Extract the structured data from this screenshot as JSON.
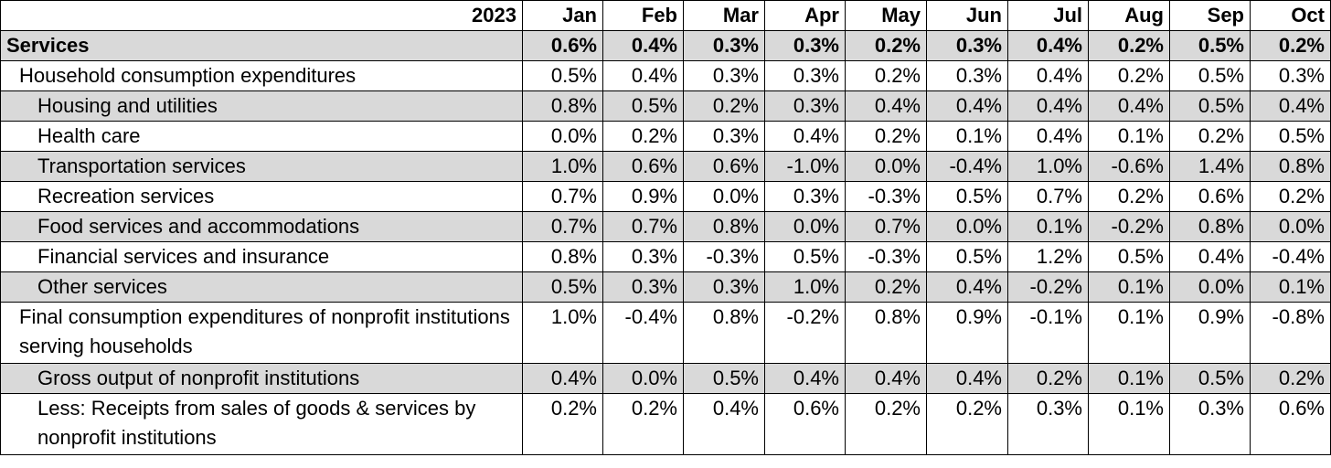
{
  "year_label": "2023",
  "months": [
    "Jan",
    "Feb",
    "Mar",
    "Apr",
    "May",
    "Jun",
    "Jul",
    "Aug",
    "Sep",
    "Oct"
  ],
  "rows": [
    {
      "label": "Services",
      "level": 0,
      "bold": true,
      "shade": true,
      "tall": false,
      "values": [
        "0.6%",
        "0.4%",
        "0.3%",
        "0.3%",
        "0.2%",
        "0.3%",
        "0.4%",
        "0.2%",
        "0.5%",
        "0.2%"
      ]
    },
    {
      "label": "Household consumption expenditures",
      "level": 1,
      "bold": false,
      "shade": false,
      "tall": false,
      "values": [
        "0.5%",
        "0.4%",
        "0.3%",
        "0.3%",
        "0.2%",
        "0.3%",
        "0.4%",
        "0.2%",
        "0.5%",
        "0.3%"
      ]
    },
    {
      "label": "Housing and utilities",
      "level": 2,
      "bold": false,
      "shade": true,
      "tall": false,
      "values": [
        "0.8%",
        "0.5%",
        "0.2%",
        "0.3%",
        "0.4%",
        "0.4%",
        "0.4%",
        "0.4%",
        "0.5%",
        "0.4%"
      ]
    },
    {
      "label": "Health care",
      "level": 2,
      "bold": false,
      "shade": false,
      "tall": false,
      "values": [
        "0.0%",
        "0.2%",
        "0.3%",
        "0.4%",
        "0.2%",
        "0.1%",
        "0.4%",
        "0.1%",
        "0.2%",
        "0.5%"
      ]
    },
    {
      "label": "Transportation services",
      "level": 2,
      "bold": false,
      "shade": true,
      "tall": false,
      "values": [
        "1.0%",
        "0.6%",
        "0.6%",
        "-1.0%",
        "0.0%",
        "-0.4%",
        "1.0%",
        "-0.6%",
        "1.4%",
        "0.8%"
      ]
    },
    {
      "label": "Recreation services",
      "level": 2,
      "bold": false,
      "shade": false,
      "tall": false,
      "values": [
        "0.7%",
        "0.9%",
        "0.0%",
        "0.3%",
        "-0.3%",
        "0.5%",
        "0.7%",
        "0.2%",
        "0.6%",
        "0.2%"
      ]
    },
    {
      "label": "Food services and accommodations",
      "level": 2,
      "bold": false,
      "shade": true,
      "tall": false,
      "values": [
        "0.7%",
        "0.7%",
        "0.8%",
        "0.0%",
        "0.7%",
        "0.0%",
        "0.1%",
        "-0.2%",
        "0.8%",
        "0.0%"
      ]
    },
    {
      "label": "Financial services and insurance",
      "level": 2,
      "bold": false,
      "shade": false,
      "tall": false,
      "values": [
        "0.8%",
        "0.3%",
        "-0.3%",
        "0.5%",
        "-0.3%",
        "0.5%",
        "1.2%",
        "0.5%",
        "0.4%",
        "-0.4%"
      ]
    },
    {
      "label": "Other services",
      "level": 2,
      "bold": false,
      "shade": true,
      "tall": false,
      "values": [
        "0.5%",
        "0.3%",
        "0.3%",
        "1.0%",
        "0.2%",
        "0.4%",
        "-0.2%",
        "0.1%",
        "0.0%",
        "0.1%"
      ]
    },
    {
      "label": "Final consumption expenditures of nonprofit institutions serving households",
      "level": 1,
      "bold": false,
      "shade": false,
      "tall": true,
      "values": [
        "1.0%",
        "-0.4%",
        "0.8%",
        "-0.2%",
        "0.8%",
        "0.9%",
        "-0.1%",
        "0.1%",
        "0.9%",
        "-0.8%"
      ]
    },
    {
      "label": "Gross output of nonprofit institutions",
      "level": 2,
      "bold": false,
      "shade": true,
      "tall": false,
      "values": [
        "0.4%",
        "0.0%",
        "0.5%",
        "0.4%",
        "0.4%",
        "0.4%",
        "0.2%",
        "0.1%",
        "0.5%",
        "0.2%"
      ]
    },
    {
      "label": "Less: Receipts from sales of goods & services by nonprofit institutions",
      "level": 2,
      "bold": false,
      "shade": false,
      "tall": true,
      "values": [
        "0.2%",
        "0.2%",
        "0.4%",
        "0.6%",
        "0.2%",
        "0.2%",
        "0.3%",
        "0.1%",
        "0.3%",
        "0.6%"
      ]
    }
  ]
}
